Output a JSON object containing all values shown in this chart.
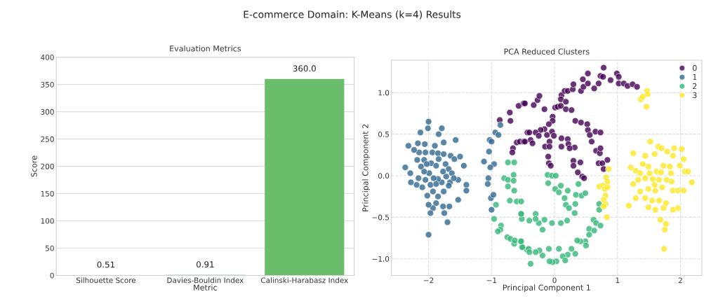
{
  "chart_data": [
    {
      "type": "bar",
      "title": "Evaluation Metrics",
      "xlabel": "Metric",
      "ylabel": "Score",
      "categories": [
        "Silhouette Score",
        "Davies-Bouldin Index",
        "Calinski-Harabasz Index"
      ],
      "values": [
        0.51,
        0.91,
        360.0
      ],
      "colors": [
        "#472c7a",
        "#21918c",
        "#6abe6b"
      ],
      "value_labels": [
        "0.51",
        "0.91",
        "360.0"
      ],
      "ylim": [
        0,
        400
      ],
      "yticks": [
        0,
        50,
        100,
        150,
        200,
        250,
        300,
        350,
        400
      ],
      "grid": "y",
      "annotations": [
        "E-commerce Domain: K-Means (k=4) Results"
      ]
    },
    {
      "type": "scatter",
      "title": "PCA Reduced Clusters",
      "xlabel": "Principal Component 1",
      "ylabel": "Principal Component 2",
      "xlim": [
        -2.59,
        2.34
      ],
      "ylim": [
        -1.2,
        1.39
      ],
      "xticks": [
        {
          "value": -2,
          "label": "−2"
        },
        {
          "value": -1,
          "label": "−1"
        },
        0,
        1,
        2
      ],
      "yticks": [
        {
          "value": -1.0,
          "label": "−1.0"
        },
        {
          "value": -0.5,
          "label": "−0.5"
        },
        {
          "value": 0.0,
          "label": "0.0"
        },
        0.5,
        {
          "value": 1.0,
          "label": "1.0"
        }
      ],
      "grid": true,
      "legend": "top right",
      "marker": "circle",
      "series": [
        {
          "name": "0",
          "color": "#440154",
          "x": [
            -0.87,
            -0.71,
            -0.7,
            -0.57,
            -0.49,
            -0.66,
            -0.67,
            -0.6,
            -0.55,
            -0.49,
            -0.43,
            -0.47,
            -0.33,
            -0.27,
            -0.24,
            -0.16,
            0.01,
            0.05,
            0.1,
            0.18,
            0.27,
            0.11,
            0.1,
            0.18,
            0.16,
            0.21,
            0.29,
            0.3,
            0.42,
            0.46,
            0.53,
            0.45,
            0.53,
            0.63,
            0.7,
            0.73,
            0.77,
            0.78,
            0.89,
            0.99,
            1.02,
            1.02,
            1.1,
            1.16,
            1.24,
            1.31,
            -0.03,
            -0.03,
            -0.09,
            -0.16,
            -0.22,
            -0.3,
            -0.4,
            -0.38,
            -0.47,
            -0.35,
            -0.25,
            -0.12,
            -0.04,
            -0.01,
            -0.08,
            -0.15,
            -0.08,
            0.11,
            0.21,
            0.11,
            0.22,
            0.32,
            0.24,
            -0.1,
            -0.09,
            -0.06,
            0.3,
            0.3,
            0.41,
            0.37,
            0.44,
            0.47,
            0.33,
            0.42,
            0.52,
            0.53,
            0.56,
            0.59,
            0.65,
            0.73,
            0.66,
            0.72,
            0.7,
            0.76,
            0.84,
            0.78,
            0.73
          ],
          "values": [
            0.67,
            0.76,
            0.66,
            0.84,
            0.87,
            0.33,
            0.28,
            0.4,
            0.41,
            0.41,
            0.52,
            0.87,
            0.85,
            0.91,
            0.96,
            0.8,
            0.82,
            0.83,
            0.84,
            0.8,
            0.79,
            0.97,
            0.92,
            0.89,
            1.02,
            1.02,
            1.04,
            1.1,
            1.02,
            1.07,
            1.11,
            1.16,
            1.23,
            1.05,
            1.11,
            1.2,
            1.19,
            1.3,
            1.15,
            1.23,
            1.19,
            1.11,
            1.11,
            1.08,
            1.1,
            1.07,
            0.71,
            0.66,
            0.62,
            0.56,
            0.55,
            0.52,
            0.52,
            0.43,
            0.41,
            0.39,
            0.48,
            0.49,
            0.53,
            0.48,
            0.41,
            0.35,
            0.35,
            0.45,
            0.44,
            0.35,
            0.38,
            0.34,
            0.33,
            0.23,
            0.15,
            0.12,
            0.18,
            0.12,
            0.16,
            0.04,
            -0.01,
            -0.03,
            0.66,
            0.64,
            0.62,
            0.55,
            0.49,
            0.41,
            0.53,
            0.52,
            0.3,
            0.27,
            0.15,
            0.15,
            0.19,
            0.08,
            0.33
          ]
        },
        {
          "name": "1",
          "color": "#31688e",
          "x": [
            -2.0,
            -2.13,
            -2.01,
            -1.79,
            -1.84,
            -2.32,
            -2.17,
            -2.06,
            -1.9,
            -1.76,
            -1.57,
            -2.37,
            -2.28,
            -2.19,
            -2.15,
            -2.05,
            -1.94,
            -1.85,
            -1.76,
            -1.65,
            -1.59,
            -1.5,
            -1.44,
            -1.4,
            -1.4,
            -1.53,
            -1.53,
            -1.66,
            -1.76,
            -1.85,
            -1.93,
            -2.02,
            -2.05,
            -2.1,
            -2.16,
            -2.18,
            -2.07,
            -1.96,
            -1.88,
            -1.73,
            -1.68,
            -1.63,
            -1.6,
            -1.72,
            -1.79,
            -1.85,
            -1.92,
            -1.99,
            -2.07,
            -2.12,
            -1.97,
            -1.88,
            -1.68,
            -1.67,
            -1.75,
            -1.77,
            -1.88,
            -1.93,
            -2.0,
            -1.97,
            -1.7,
            -2.0,
            -2.03,
            -1.84,
            -1.77,
            -2.23,
            -2.29,
            -0.94,
            -0.89,
            -0.86,
            -1.03,
            -1.0,
            -1.04,
            -1.12,
            -0.96,
            -1.02,
            -1.05,
            -1.06,
            -1.01,
            -0.97,
            -1.0
          ],
          "values": [
            0.65,
            0.52,
            0.57,
            0.57,
            0.5,
            0.36,
            0.39,
            0.38,
            0.36,
            0.4,
            0.43,
            0.1,
            -0.08,
            -0.11,
            0.28,
            0.28,
            0.28,
            0.27,
            0.26,
            0.24,
            0.2,
            0.23,
            0.12,
            -0.11,
            -0.18,
            -0.05,
            -0.29,
            -0.08,
            -0.19,
            -0.25,
            -0.19,
            -0.24,
            -0.05,
            -0.14,
            -0.03,
            0.19,
            0.19,
            0.15,
            0.12,
            0.14,
            0.08,
            0.03,
            -0.03,
            -0.01,
            -0.08,
            -0.04,
            -0.03,
            0.03,
            0.05,
            0.11,
            -0.11,
            -0.1,
            -0.12,
            -0.37,
            -0.45,
            -0.37,
            -0.33,
            -0.39,
            -0.35,
            -0.45,
            -0.56,
            -0.71,
            0.14,
            0.2,
            0.05,
            0.31,
            0.03,
            0.52,
            0.49,
            0.61,
            0.43,
            0.41,
            0.29,
            0.17,
            0.14,
            0.1,
            -0.03,
            -0.1,
            -0.27,
            -0.23,
            -0.41
          ]
        },
        {
          "name": "2",
          "color": "#35b779",
          "x": [
            -0.74,
            -0.64,
            -0.8,
            -0.74,
            -0.65,
            -0.65,
            -0.74,
            -0.64,
            -0.71,
            -0.6,
            -0.93,
            -0.96,
            -0.85,
            -0.86,
            -0.9,
            -0.75,
            -0.7,
            -0.64,
            -0.63,
            -0.54,
            -0.52,
            -0.53,
            -0.52,
            -0.44,
            -0.11,
            -0.04,
            0.02,
            -0.1,
            0.01,
            0.1,
            0.07,
            0.21,
            0.16,
            0.18,
            0.23,
            0.33,
            0.32,
            0.34,
            0.43,
            0.49,
            0.38,
            0.71,
            0.71,
            0.62,
            0.66,
            0.73,
            0.55,
            0.55,
            0.63,
            0.49,
            0.5,
            0.41,
            0.36,
            0.27,
            0.33,
            0.21,
            0.13,
            0.17,
            0.03,
            -0.03,
            -0.08,
            0.07,
            -0.09,
            -0.19,
            -0.24,
            -0.3,
            -0.38,
            -0.41,
            -0.4,
            -0.51,
            -0.53,
            -0.16,
            -0.04,
            0.1,
            0.2,
            -0.25,
            -0.19,
            -0.4,
            -0.3,
            -0.3,
            -0.53,
            -0.53
          ],
          "values": [
            0.16,
            0.16,
            -0.03,
            -0.05,
            0.01,
            -0.06,
            -0.13,
            -0.18,
            -0.3,
            -0.31,
            -0.35,
            -0.52,
            -0.6,
            -0.65,
            -0.67,
            -0.74,
            -0.76,
            -0.82,
            -0.78,
            -0.79,
            -0.86,
            -0.46,
            -0.52,
            -0.89,
            0.01,
            0.0,
            0.0,
            -0.09,
            -0.16,
            -0.12,
            -0.2,
            -0.18,
            -0.27,
            -0.35,
            -0.39,
            -0.34,
            -0.45,
            -0.23,
            -0.24,
            -0.21,
            -0.1,
            -0.34,
            -0.41,
            -0.53,
            -0.57,
            -0.6,
            -0.64,
            -0.71,
            -0.66,
            -0.79,
            -0.84,
            -0.79,
            -0.78,
            -0.88,
            -0.94,
            -0.95,
            -0.97,
            -1.02,
            -1.03,
            -1.04,
            -1.03,
            -0.88,
            -0.88,
            -0.96,
            -0.9,
            -0.92,
            -1.06,
            -0.88,
            -0.92,
            -0.86,
            -0.79,
            -0.53,
            -0.57,
            -0.57,
            -0.54,
            -0.57,
            -0.65,
            -0.54,
            -0.46,
            -0.52,
            -0.46,
            -0.31
          ]
        },
        {
          "name": "3",
          "color": "#fde725",
          "x": [
            1.37,
            1.4,
            1.47,
            1.48,
            1.46,
            0.86,
            0.82,
            0.84,
            0.71,
            0.77,
            0.8,
            0.84,
            0.81,
            0.78,
            0.81,
            0.78,
            0.83,
            1.52,
            1.65,
            1.7,
            1.9,
            2.02,
            1.25,
            1.44,
            1.59,
            1.79,
            1.88,
            2.05,
            1.99,
            1.4,
            1.49,
            1.73,
            1.83,
            1.21,
            1.29,
            1.36,
            1.51,
            1.62,
            1.69,
            1.85,
            2.07,
            2.12,
            2.18,
            1.25,
            1.44,
            1.56,
            1.66,
            1.78,
            1.36,
            1.49,
            1.6,
            1.71,
            1.88,
            1.96,
            2.05,
            1.29,
            1.44,
            1.55,
            1.66,
            1.77,
            1.18,
            1.49,
            1.6,
            1.73,
            1.88,
            1.96,
            1.68,
            1.77,
            1.75,
            1.74,
            1.33,
            1.86,
            1.59
          ],
          "values": [
            0.92,
            0.95,
            1.02,
            0.98,
            0.83,
            0.08,
            -0.02,
            -0.07,
            -0.13,
            -0.12,
            -0.16,
            -0.14,
            -0.24,
            -0.29,
            -0.34,
            -0.37,
            -0.5,
            0.41,
            0.35,
            0.33,
            0.33,
            0.32,
            0.27,
            0.24,
            0.26,
            0.29,
            0.24,
            0.2,
            0.12,
            0.14,
            0.11,
            0.12,
            0.11,
            0.1,
            0.06,
            0.03,
            0.03,
            0.05,
            0.04,
            0.03,
            0.05,
            0.05,
            -0.08,
            -0.1,
            -0.03,
            -0.04,
            -0.05,
            -0.05,
            -0.19,
            -0.16,
            -0.18,
            -0.14,
            -0.18,
            -0.18,
            -0.18,
            -0.27,
            -0.27,
            -0.3,
            -0.3,
            -0.33,
            -0.36,
            -0.38,
            -0.41,
            -0.39,
            -0.41,
            -0.39,
            -0.53,
            -0.58,
            -0.65,
            -0.88,
            -0.05,
            -0.07,
            -0.11
          ]
        }
      ]
    }
  ]
}
